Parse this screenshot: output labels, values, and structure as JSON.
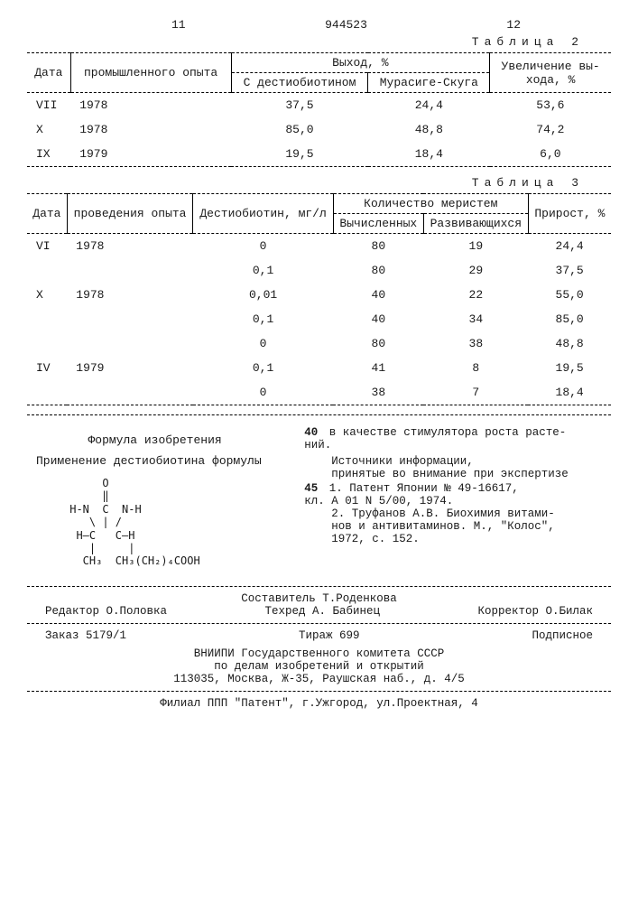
{
  "page": {
    "left_num": "11",
    "doc_num": "944523",
    "right_num": "12"
  },
  "table2": {
    "title": "Таблица 2",
    "headers": {
      "c1": "Дата",
      "c2": "промышленного опыта",
      "c3": "Выход, %",
      "c3a": "С дестиобиотином",
      "c3b": "Мурасиге-Скуга",
      "c4": "Увеличение вы-\nхода, %"
    },
    "rows": [
      {
        "m": "VII",
        "y": "1978",
        "a": "37,5",
        "b": "24,4",
        "c": "53,6"
      },
      {
        "m": "X",
        "y": "1978",
        "a": "85,0",
        "b": "48,8",
        "c": "74,2"
      },
      {
        "m": "IX",
        "y": "1979",
        "a": "19,5",
        "b": "18,4",
        "c": "6,0"
      }
    ]
  },
  "table3": {
    "title": "Таблица 3",
    "headers": {
      "c1": "Дата",
      "c2": "проведения опыта",
      "c3": "Дестиобиотин, мг/л",
      "c4": "Количество меристем",
      "c4a": "Вычисленных",
      "c4b": "Развивающихся",
      "c5": "Прирост, %"
    },
    "rows": [
      {
        "m": "VI",
        "y": "1978",
        "d": "0",
        "a": "80",
        "b": "19",
        "c": "24,4"
      },
      {
        "m": "",
        "y": "",
        "d": "0,1",
        "a": "80",
        "b": "29",
        "c": "37,5"
      },
      {
        "m": "X",
        "y": "1978",
        "d": "0,01",
        "a": "40",
        "b": "22",
        "c": "55,0"
      },
      {
        "m": "",
        "y": "",
        "d": "0,1",
        "a": "40",
        "b": "34",
        "c": "85,0"
      },
      {
        "m": "",
        "y": "",
        "d": "0",
        "a": "80",
        "b": "38",
        "c": "48,8"
      },
      {
        "m": "IV",
        "y": "1979",
        "d": "0,1",
        "a": "41",
        "b": "8",
        "c": "19,5"
      },
      {
        "m": "",
        "y": "",
        "d": "0",
        "a": "38",
        "b": "7",
        "c": "18,4"
      }
    ]
  },
  "formula": {
    "heading": "Формула изобретения",
    "sub": "Применение дестиобиотина формулы",
    "ascii": "      O\n      ‖\n H-N  C  N-H\n    \\ | /\n  H—C   C—H\n    |     |\n   CH₃  CH₃(CH₂)₄COOH"
  },
  "right_col": {
    "l40": "40",
    "t40": "в качестве стимулятора роста расте-\nний.",
    "src_h": "Источники информации,\nпринятые во внимание при экспертизе",
    "l45": "45",
    "r1": "1. Патент Японии № 49-16617,\nкл. A 01 N 5/00, 1974.",
    "r2": "2. Труфанов А.В. Биохимия витами-\nнов и антивитаминов. М., \"Колос\",\n1972, с. 152."
  },
  "footer": {
    "comp": "Составитель Т.Роденкова",
    "ed": "Редактор О.Половка",
    "tech": "Техред А. Бабинец",
    "corr": "Корректор О.Билак",
    "order": "Заказ 5179/1",
    "tir": "Тираж 699",
    "sub": "Подписное",
    "org": "ВНИИПИ Государственного комитета СССР\nпо делам изобретений и открытий\n113035, Москва, Ж-35, Раушская наб., д. 4/5",
    "branch": "Филиал ППП \"Патент\", г.Ужгород, ул.Проектная, 4"
  }
}
